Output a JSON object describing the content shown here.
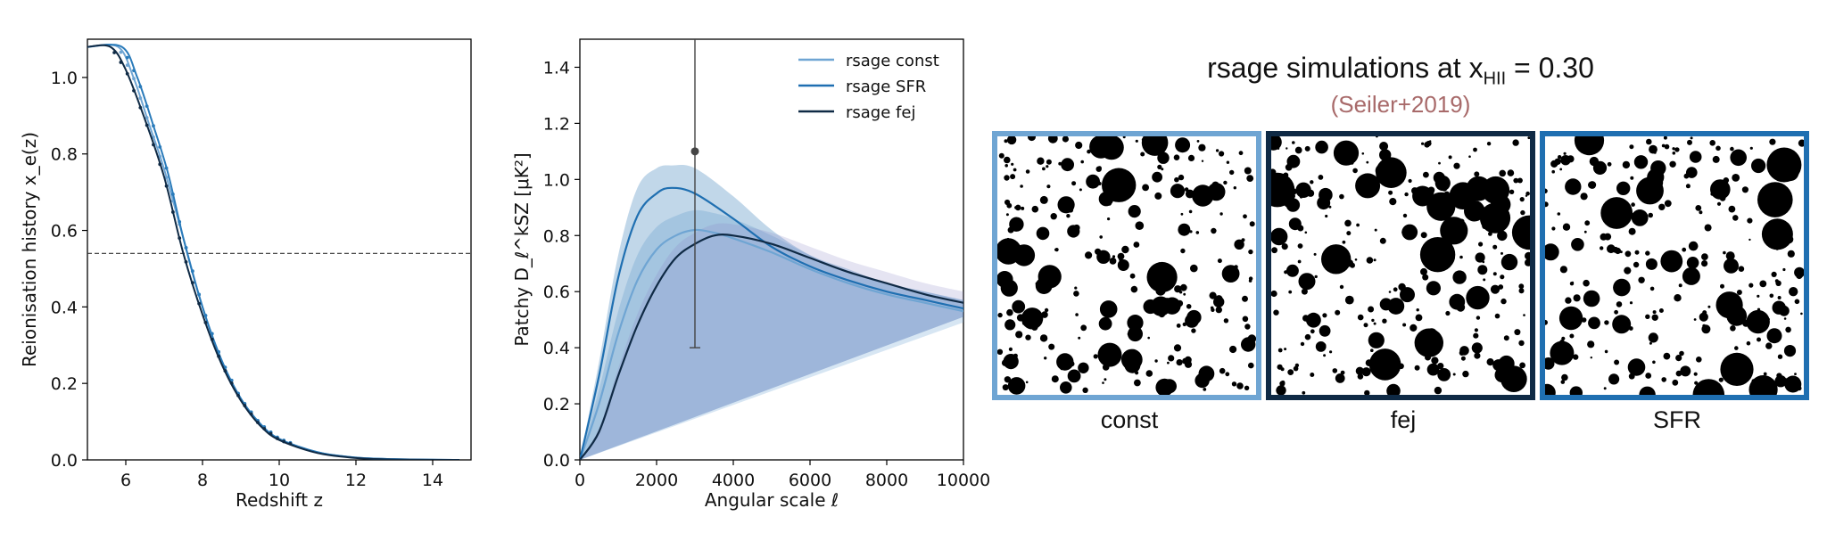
{
  "chart_data": [
    {
      "type": "line",
      "xlabel": "Redshift z",
      "ylabel": "Reionisation history x_e(z)",
      "xlim": [
        5,
        15
      ],
      "ylim": [
        0,
        1.1
      ],
      "xticks": [
        "6",
        "8",
        "10",
        "12",
        "14"
      ],
      "yticks": [
        "0.0",
        "0.2",
        "0.4",
        "0.6",
        "0.8",
        "1.0"
      ],
      "hline": 0.54,
      "series": [
        {
          "color": "#6fa5d3",
          "points": [
            [
              5,
              1.08
            ],
            [
              5.8,
              1.08
            ],
            [
              6.2,
              1.0
            ],
            [
              6.6,
              0.88
            ],
            [
              7.0,
              0.76
            ],
            [
              7.5,
              0.58
            ],
            [
              8.0,
              0.4
            ],
            [
              8.5,
              0.26
            ],
            [
              9.0,
              0.16
            ],
            [
              9.5,
              0.095
            ],
            [
              10,
              0.055
            ],
            [
              11,
              0.02
            ],
            [
              12,
              0.006
            ],
            [
              13,
              0.002
            ],
            [
              14.7,
              0
            ]
          ]
        },
        {
          "color": "#2a7bba",
          "points": [
            [
              5,
              1.08
            ],
            [
              5.9,
              1.08
            ],
            [
              6.3,
              1.0
            ],
            [
              6.7,
              0.88
            ],
            [
              7.1,
              0.75
            ],
            [
              7.5,
              0.58
            ],
            [
              8.0,
              0.4
            ],
            [
              8.5,
              0.26
            ],
            [
              9.0,
              0.16
            ],
            [
              9.5,
              0.095
            ],
            [
              10,
              0.055
            ],
            [
              11,
              0.02
            ],
            [
              12,
              0.006
            ],
            [
              13,
              0.002
            ],
            [
              14.7,
              0
            ]
          ]
        },
        {
          "color": "#0f2a45",
          "points": [
            [
              5,
              1.08
            ],
            [
              5.6,
              1.08
            ],
            [
              6.0,
              1.02
            ],
            [
              6.5,
              0.89
            ],
            [
              7.0,
              0.74
            ],
            [
              7.5,
              0.54
            ],
            [
              8.0,
              0.38
            ],
            [
              8.5,
              0.25
            ],
            [
              9.0,
              0.155
            ],
            [
              9.5,
              0.09
            ],
            [
              10,
              0.052
            ],
            [
              11,
              0.018
            ],
            [
              12,
              0.005
            ],
            [
              13,
              0.001
            ],
            [
              14.7,
              0
            ]
          ]
        }
      ]
    },
    {
      "type": "line",
      "xlabel": "Angular scale ℓ",
      "ylabel": "Patchy D_ℓ^kSZ [μK²]",
      "xlim": [
        0,
        10000
      ],
      "ylim": [
        0,
        1.5
      ],
      "xticks": [
        "0",
        "2000",
        "4000",
        "6000",
        "8000",
        "10000"
      ],
      "yticks": [
        "0.0",
        "0.2",
        "0.4",
        "0.6",
        "0.8",
        "1.0",
        "1.2",
        "1.4"
      ],
      "legend_position": "top-right",
      "series": [
        {
          "name": "rsage const",
          "color": "#6fa5d3",
          "points": [
            [
              0,
              0
            ],
            [
              500,
              0.2
            ],
            [
              1000,
              0.45
            ],
            [
              1500,
              0.64
            ],
            [
              2000,
              0.75
            ],
            [
              2500,
              0.8
            ],
            [
              3000,
              0.82
            ],
            [
              3500,
              0.81
            ],
            [
              4000,
              0.79
            ],
            [
              5000,
              0.74
            ],
            [
              6000,
              0.68
            ],
            [
              7000,
              0.63
            ],
            [
              8000,
              0.59
            ],
            [
              9000,
              0.56
            ],
            [
              10000,
              0.53
            ]
          ]
        },
        {
          "name": "rsage SFR",
          "color": "#1f6fb1",
          "points": [
            [
              0,
              0
            ],
            [
              500,
              0.3
            ],
            [
              1000,
              0.65
            ],
            [
              1500,
              0.87
            ],
            [
              2000,
              0.95
            ],
            [
              2400,
              0.97
            ],
            [
              3000,
              0.95
            ],
            [
              4000,
              0.86
            ],
            [
              5000,
              0.76
            ],
            [
              6000,
              0.69
            ],
            [
              7000,
              0.64
            ],
            [
              8000,
              0.6
            ],
            [
              9000,
              0.57
            ],
            [
              10000,
              0.54
            ]
          ]
        },
        {
          "name": "rsage fej",
          "color": "#0f2a45",
          "points": [
            [
              0,
              0
            ],
            [
              500,
              0.1
            ],
            [
              1000,
              0.3
            ],
            [
              1500,
              0.48
            ],
            [
              2000,
              0.62
            ],
            [
              2500,
              0.72
            ],
            [
              3000,
              0.77
            ],
            [
              3500,
              0.8
            ],
            [
              4000,
              0.8
            ],
            [
              5000,
              0.77
            ],
            [
              6000,
              0.72
            ],
            [
              7000,
              0.67
            ],
            [
              8000,
              0.63
            ],
            [
              9000,
              0.59
            ],
            [
              10000,
              0.56
            ]
          ]
        }
      ],
      "bands": [
        {
          "color": "#6fa5d3",
          "lower": [
            0,
            0.15,
            0.37,
            0.55,
            0.67,
            0.73,
            0.75,
            0.74,
            0.72,
            0.68,
            0.63,
            0.59,
            0.55,
            0.52,
            0.49
          ],
          "upper": [
            0,
            0.25,
            0.53,
            0.73,
            0.83,
            0.87,
            0.89,
            0.88,
            0.86,
            0.8,
            0.73,
            0.67,
            0.63,
            0.6,
            0.57
          ]
        },
        {
          "color": "#1f6fb1",
          "lower": [
            0,
            0.25,
            0.57,
            0.77,
            0.85,
            0.87,
            0.86,
            0.78,
            0.7,
            0.65,
            0.6,
            0.57,
            0.54,
            0.51
          ],
          "upper": [
            0,
            0.35,
            0.73,
            0.97,
            1.04,
            1.05,
            1.04,
            0.94,
            0.82,
            0.73,
            0.68,
            0.63,
            0.6,
            0.57
          ]
        }
      ],
      "errorbar": {
        "x": 3000,
        "y": 1.1,
        "low": 0.4,
        "high": 1.5
      }
    }
  ],
  "simulations": {
    "title_prefix": "rsage simulations at x",
    "title_sub": "HII",
    "title_suffix": " = 0.30",
    "subtitle": "(Seiler+2019)",
    "panels": [
      {
        "label": "const",
        "border_color": "#6fa5d3"
      },
      {
        "label": "fej",
        "border_color": "#0f2a45"
      },
      {
        "label": "SFR",
        "border_color": "#1f6fb1"
      }
    ]
  }
}
